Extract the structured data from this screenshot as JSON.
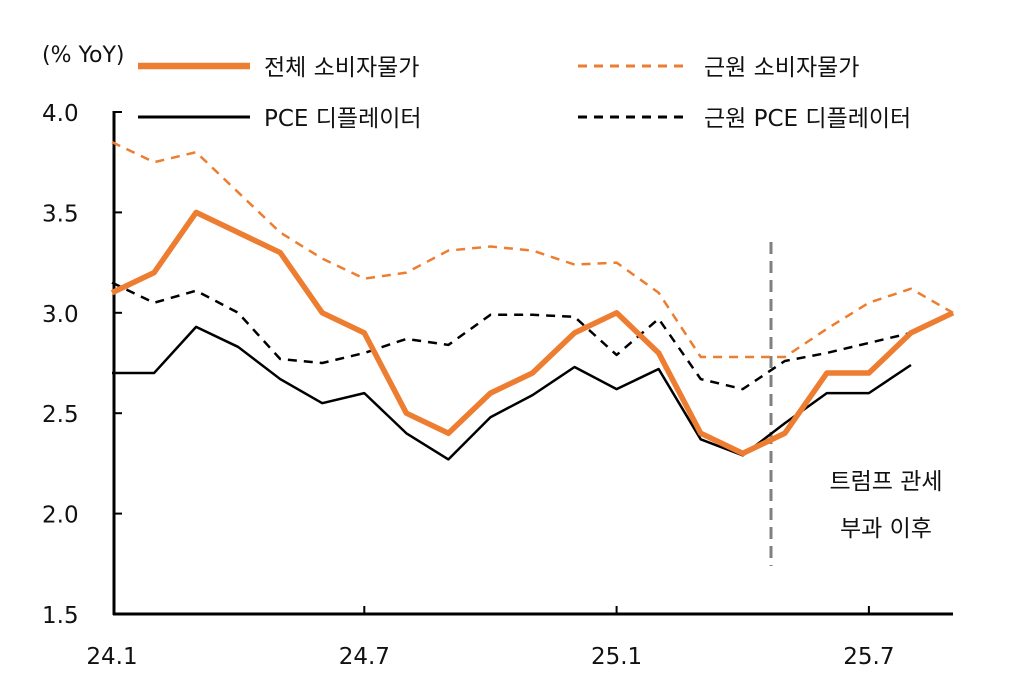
{
  "chart_data": {
    "type": "line",
    "unit_label": "(% YoY)",
    "x": [
      "24.1",
      "24.2",
      "24.3",
      "24.4",
      "24.5",
      "24.6",
      "24.7",
      "24.8",
      "24.9",
      "24.10",
      "24.11",
      "24.12",
      "25.1",
      "25.2",
      "25.3",
      "25.4",
      "25.5",
      "25.6",
      "25.7",
      "25.8",
      "25.9"
    ],
    "x_tick_labels": [
      "24.1",
      "24.7",
      "25.1",
      "25.7"
    ],
    "y_tick_labels": [
      "1.5",
      "2.0",
      "2.5",
      "3.0",
      "3.5",
      "4.0"
    ],
    "ylim": [
      1.5,
      4.0
    ],
    "grid": false,
    "legend_placement": "top",
    "series": [
      {
        "name": "전체 소비자물가",
        "color": "#ED7D31",
        "style": "solid-thick",
        "values": [
          3.1,
          3.2,
          3.5,
          3.4,
          3.3,
          3.0,
          2.9,
          2.5,
          2.4,
          2.6,
          2.7,
          2.9,
          3.0,
          2.8,
          2.4,
          2.3,
          2.4,
          2.7,
          2.7,
          2.9,
          3.0
        ]
      },
      {
        "name": "근원 소비자물가",
        "color": "#ED7D31",
        "style": "dashed",
        "values": [
          3.85,
          3.75,
          3.8,
          3.6,
          3.4,
          3.27,
          3.17,
          3.2,
          3.31,
          3.33,
          3.31,
          3.24,
          3.25,
          3.1,
          2.78,
          2.78,
          2.78,
          2.92,
          3.05,
          3.12,
          3.0
        ]
      },
      {
        "name": "PCE 디플레이터",
        "color": "#000000",
        "style": "solid",
        "values": [
          2.7,
          2.7,
          2.93,
          2.83,
          2.67,
          2.55,
          2.6,
          2.4,
          2.27,
          2.48,
          2.59,
          2.73,
          2.62,
          2.72,
          2.37,
          2.29,
          2.45,
          2.6,
          2.6,
          2.74,
          null
        ]
      },
      {
        "name": "근원 PCE 디플레이터",
        "color": "#000000",
        "style": "dashed",
        "values": [
          3.15,
          3.05,
          3.11,
          3.0,
          2.77,
          2.75,
          2.8,
          2.87,
          2.84,
          2.99,
          2.99,
          2.98,
          2.79,
          2.97,
          2.67,
          2.62,
          2.76,
          2.8,
          2.85,
          2.9,
          null
        ]
      }
    ],
    "annotation": {
      "lines": [
        "트럼프 관세",
        "부과 이후"
      ],
      "marker_color": "#808080"
    }
  }
}
